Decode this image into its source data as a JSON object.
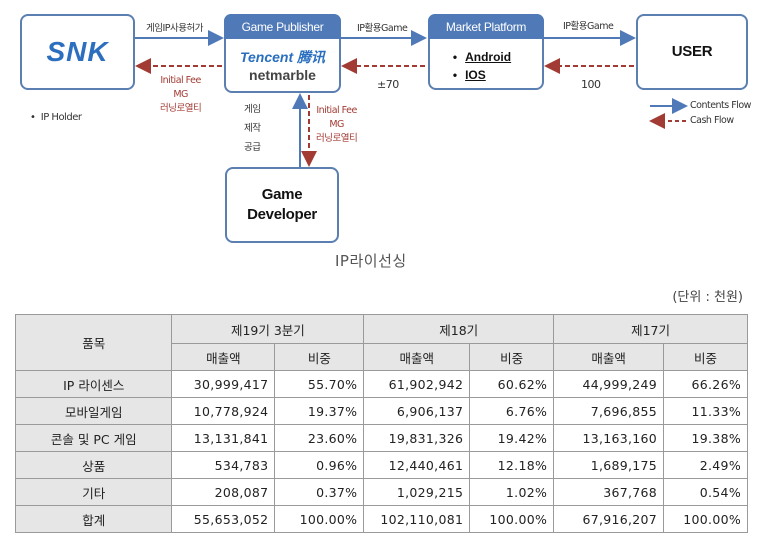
{
  "diagram": {
    "snk_logo": "SNK",
    "game_publisher": {
      "header": "Game Publisher",
      "tencent_logo": "Tencent 腾讯",
      "netmarble_logo": "netmarble"
    },
    "market_platform": {
      "header": "Market Platform",
      "items": [
        "Android",
        "IOS"
      ]
    },
    "user": "USER",
    "game_developer": "Game\nDeveloper",
    "ip_holder": "IP Holder",
    "labels": {
      "ip_license_grant": "게임IP사용허가",
      "ip_game_1": "IP활용Game",
      "ip_game_2": "IP활용Game",
      "fee_top": [
        "Initial Fee",
        "MG",
        "러닝로열티"
      ],
      "fee_bottom": [
        "Initial Fee",
        "MG",
        "러닝로열티"
      ],
      "game_supply": [
        "게임",
        "제작",
        "공급"
      ],
      "pm70": "±70",
      "hundred": "100"
    },
    "legend": {
      "contents": "Contents Flow",
      "cash": "Cash Flow"
    },
    "colors": {
      "blue": "#4f79b7",
      "red": "#a23b33"
    }
  },
  "caption": "IP라이선싱",
  "unit": "(단위 : 천원)",
  "table": {
    "header_item": "품목",
    "periods": [
      "제19기 3분기",
      "제18기",
      "제17기"
    ],
    "sub_headers": [
      "매출액",
      "비중"
    ],
    "rows": [
      {
        "label": "IP 라이센스",
        "values": [
          "30,999,417",
          "55.70%",
          "61,902,942",
          "60.62%",
          "44,999,249",
          "66.26%"
        ]
      },
      {
        "label": "모바일게임",
        "values": [
          "10,778,924",
          "19.37%",
          "6,906,137",
          "6.76%",
          "7,696,855",
          "11.33%"
        ]
      },
      {
        "label": "콘솔 및 PC 게임",
        "values": [
          "13,131,841",
          "23.60%",
          "19,831,326",
          "19.42%",
          "13,163,160",
          "19.38%"
        ]
      },
      {
        "label": "상품",
        "values": [
          "534,783",
          "0.96%",
          "12,440,461",
          "12.18%",
          "1,689,175",
          "2.49%"
        ]
      },
      {
        "label": "기타",
        "values": [
          "208,087",
          "0.37%",
          "1,029,215",
          "1.02%",
          "367,768",
          "0.54%"
        ]
      },
      {
        "label": "합계",
        "values": [
          "55,653,052",
          "100.00%",
          "102,110,081",
          "100.00%",
          "67,916,207",
          "100.00%"
        ]
      }
    ]
  }
}
